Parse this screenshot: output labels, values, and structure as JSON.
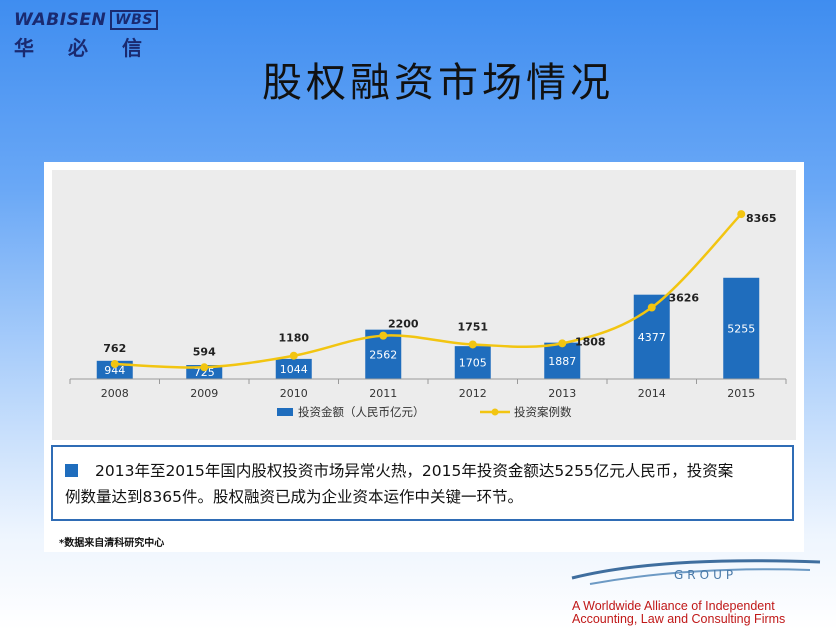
{
  "logo": {
    "brand": "WABISEN",
    "mark": "WBS",
    "cn": "华必信"
  },
  "title": "股权融资市场情况",
  "chart_data": {
    "type": "bar",
    "categories": [
      "2008",
      "2009",
      "2010",
      "2011",
      "2012",
      "2013",
      "2014",
      "2015"
    ],
    "series": [
      {
        "name": "投资金额（人民币亿元）",
        "kind": "bar",
        "color": "#1f6dbd",
        "values": [
          944,
          725,
          1044,
          2562,
          1705,
          1887,
          4377,
          5255
        ]
      },
      {
        "name": "投资案例数",
        "kind": "line",
        "color": "#f2c511",
        "values": [
          762,
          594,
          1180,
          2200,
          1751,
          1808,
          3626,
          8365
        ]
      }
    ],
    "bar_ymax": 16600,
    "line_ymax": 10600,
    "legend": "bottom"
  },
  "note": {
    "line1": "2013年至2015年国内股权投资市场异常火热，2015年投资金额达5255亿元人民币，投资案",
    "line2": "例数量达到8365件。股权融资已成为企业资本运作中关键一环节。"
  },
  "source": "*数据来自清科研究中心",
  "alliance": {
    "group": "GROUP",
    "tagline1": "A Worldwide Alliance of Independent",
    "tagline2": "Accounting, Law and Consulting Firms"
  }
}
